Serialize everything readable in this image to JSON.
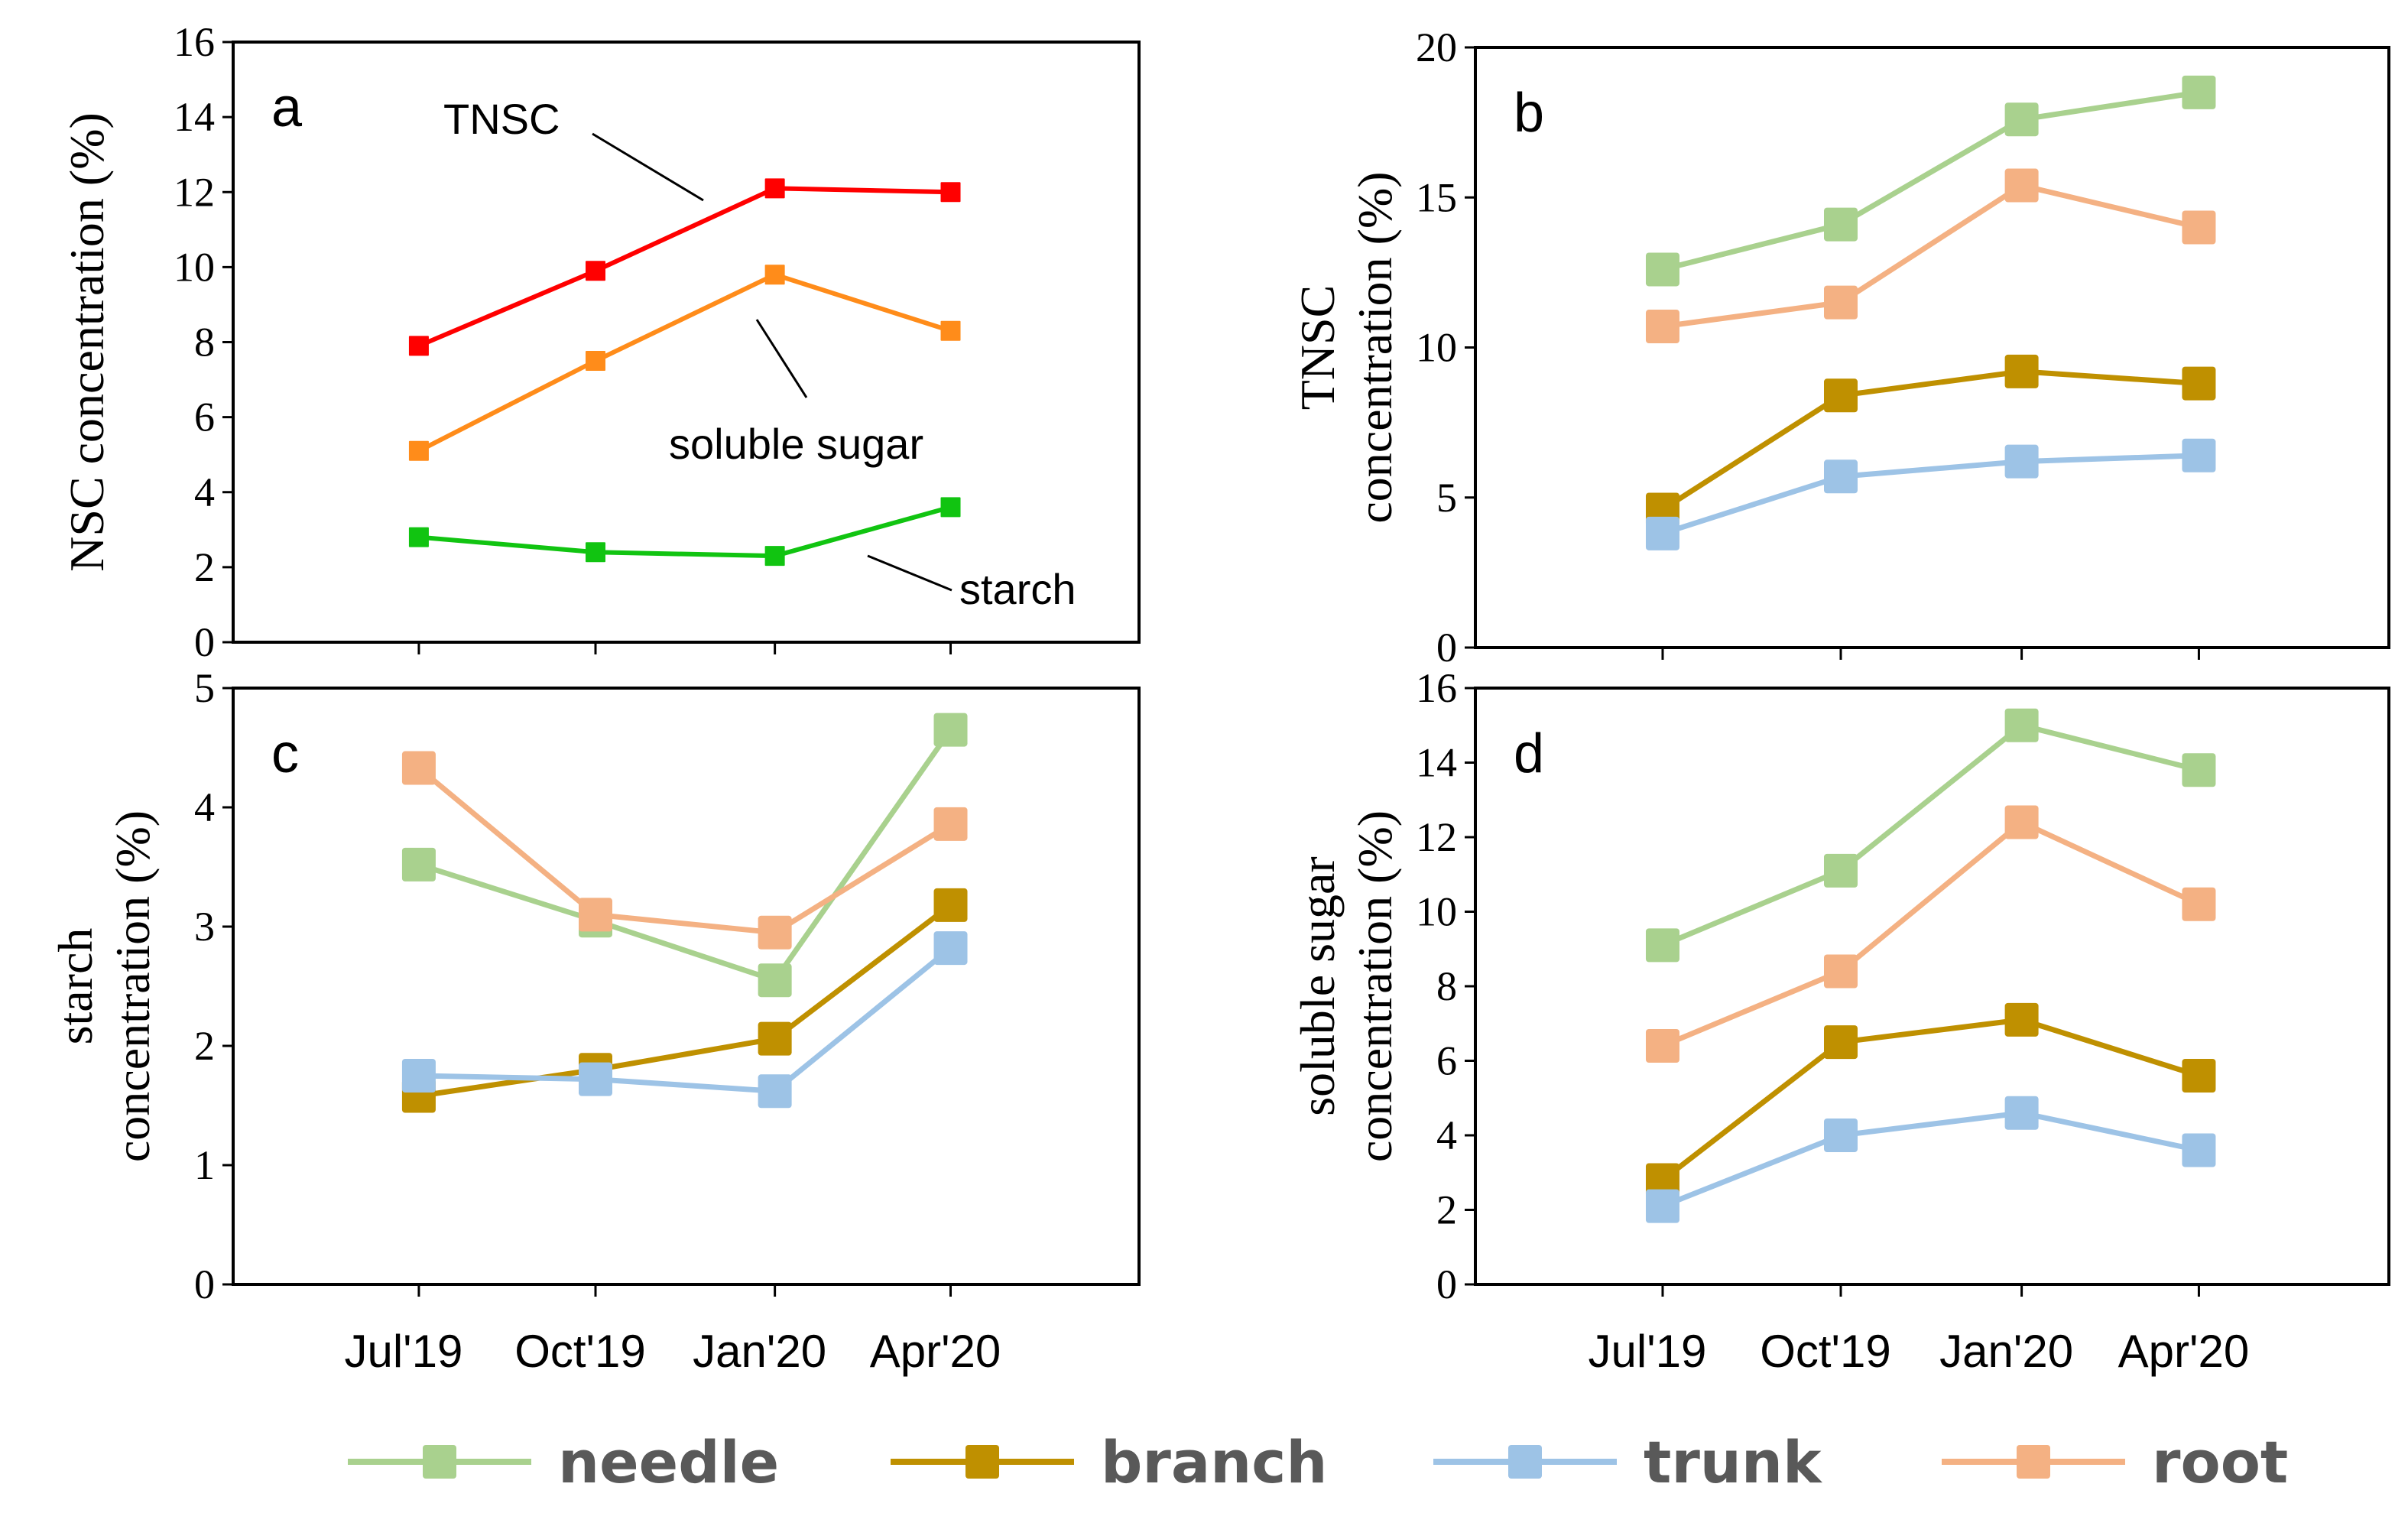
{
  "chart_data": [
    {
      "panel": "a",
      "type": "line",
      "categories": [
        "Jul'19",
        "Oct'19",
        "Jan'20",
        "Apr'20"
      ],
      "ylabel": "NSC concentration (%)",
      "ylim": [
        0,
        16
      ],
      "yticks": [
        0,
        2,
        4,
        6,
        8,
        10,
        12,
        14,
        16
      ],
      "show_xticks": false,
      "series": [
        {
          "name": "TNSC",
          "color": "#ff0000",
          "values": [
            7.9,
            9.9,
            12.1,
            12.0
          ]
        },
        {
          "name": "soluble sugar",
          "color": "#ff8c1a",
          "values": [
            5.1,
            7.5,
            9.8,
            8.3
          ]
        },
        {
          "name": "starch",
          "color": "#11c411",
          "values": [
            2.8,
            2.4,
            2.3,
            3.6
          ]
        }
      ],
      "annotations": [
        "TNSC",
        "soluble sugar",
        "starch"
      ]
    },
    {
      "panel": "b",
      "type": "line",
      "categories": [
        "Jul'19",
        "Oct'19",
        "Jan'20",
        "Apr'20"
      ],
      "ylabel": "TNSC concentration (%)",
      "ylabel_lines": [
        "TNSC",
        "concentration (%)"
      ],
      "ylim": [
        0,
        20
      ],
      "yticks": [
        0,
        5,
        10,
        15,
        20
      ],
      "show_xticks": false,
      "series": [
        {
          "name": "needle",
          "color": "#a9d18e",
          "values": [
            12.6,
            14.1,
            17.6,
            18.5
          ]
        },
        {
          "name": "root",
          "color": "#f4b183",
          "values": [
            10.7,
            11.5,
            15.4,
            14.0
          ]
        },
        {
          "name": "branch",
          "color": "#bf9000",
          "values": [
            4.6,
            8.4,
            9.2,
            8.8
          ]
        },
        {
          "name": "trunk",
          "color": "#9dc3e6",
          "values": [
            3.8,
            5.7,
            6.2,
            6.4
          ]
        }
      ]
    },
    {
      "panel": "c",
      "type": "line",
      "categories": [
        "Jul'19",
        "Oct'19",
        "Jan'20",
        "Apr'20"
      ],
      "ylabel": "starch concentration (%)",
      "ylabel_lines": [
        "starch",
        "concentration (%)"
      ],
      "ylim": [
        0,
        5
      ],
      "yticks": [
        0,
        1,
        2,
        3,
        4,
        5
      ],
      "show_xticks": true,
      "series": [
        {
          "name": "needle",
          "color": "#a9d18e",
          "values": [
            3.52,
            3.05,
            2.55,
            4.65
          ]
        },
        {
          "name": "root",
          "color": "#f4b183",
          "values": [
            4.33,
            3.1,
            2.95,
            3.86
          ]
        },
        {
          "name": "branch",
          "color": "#bf9000",
          "values": [
            1.58,
            1.8,
            2.06,
            3.18
          ]
        },
        {
          "name": "trunk",
          "color": "#9dc3e6",
          "values": [
            1.75,
            1.72,
            1.62,
            2.82
          ]
        }
      ]
    },
    {
      "panel": "d",
      "type": "line",
      "categories": [
        "Jul'19",
        "Oct'19",
        "Jan'20",
        "Apr'20"
      ],
      "ylabel": "soluble sugar concentration (%)",
      "ylabel_lines": [
        "soluble sugar",
        "concentration (%)"
      ],
      "ylim": [
        0,
        16
      ],
      "yticks": [
        0,
        2,
        4,
        6,
        8,
        10,
        12,
        14,
        16
      ],
      "show_xticks": true,
      "series": [
        {
          "name": "needle",
          "color": "#a9d18e",
          "values": [
            9.1,
            11.1,
            15.0,
            13.8
          ]
        },
        {
          "name": "root",
          "color": "#f4b183",
          "values": [
            6.4,
            8.4,
            12.4,
            10.2
          ]
        },
        {
          "name": "branch",
          "color": "#bf9000",
          "values": [
            2.8,
            6.5,
            7.1,
            5.6
          ]
        },
        {
          "name": "trunk",
          "color": "#9dc3e6",
          "values": [
            2.1,
            4.0,
            4.6,
            3.6
          ]
        }
      ]
    }
  ],
  "legend": [
    {
      "label": "needle",
      "color": "#a9d18e"
    },
    {
      "label": "branch",
      "color": "#bf9000"
    },
    {
      "label": "trunk",
      "color": "#9dc3e6"
    },
    {
      "label": "root",
      "color": "#f4b183"
    }
  ]
}
